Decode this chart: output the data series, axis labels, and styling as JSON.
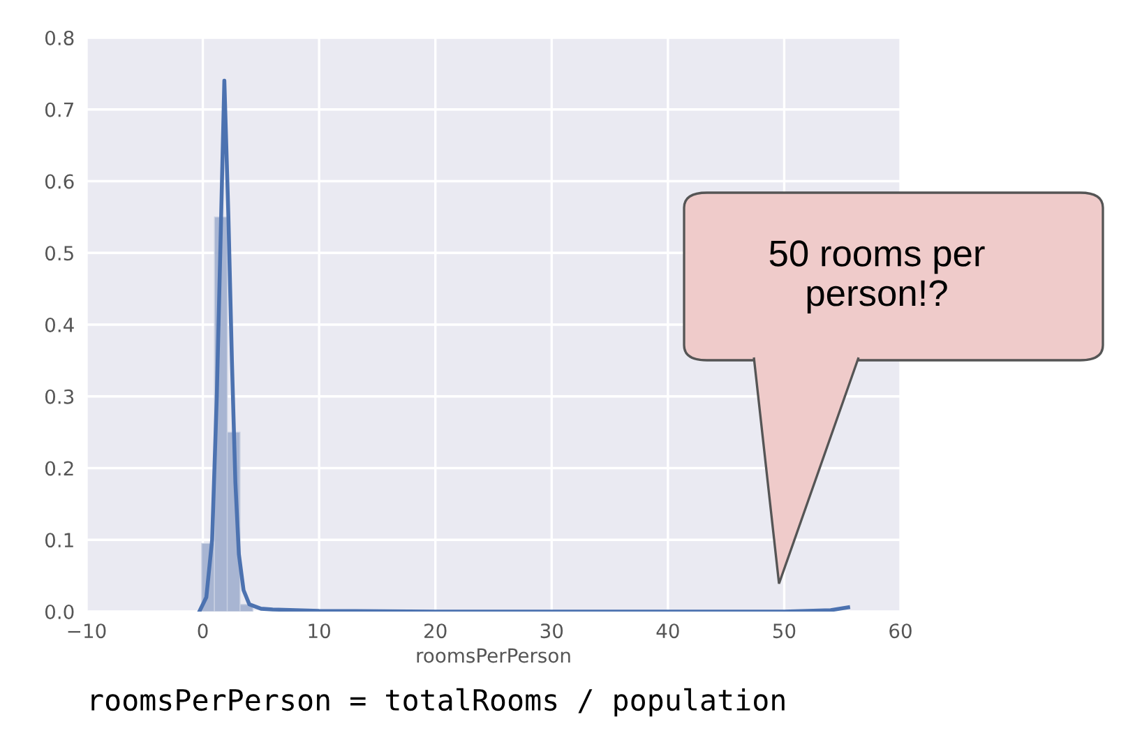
{
  "chart_data": {
    "type": "histogram",
    "bins": [
      -0.1,
      1.0,
      2.1,
      3.2,
      4.3
    ],
    "values": [
      0.095,
      0.55,
      0.25,
      0.01
    ],
    "color": "#a8b5d2",
    "series": [
      {
        "type": "line",
        "color": "#4c72b0",
        "x": [
          -0.3,
          0.3,
          0.8,
          1.2,
          1.5,
          1.85,
          2.2,
          2.5,
          2.8,
          3.1,
          3.5,
          4.0,
          5.0,
          6.0,
          8.0,
          10,
          20,
          30,
          40,
          50,
          54,
          55.5
        ],
        "values": [
          0,
          0.02,
          0.1,
          0.3,
          0.5,
          0.74,
          0.55,
          0.35,
          0.18,
          0.08,
          0.03,
          0.01,
          0.004,
          0.003,
          0.002,
          0.001,
          0,
          0,
          0,
          0,
          0.002,
          0.006
        ]
      }
    ],
    "xlabel": "roomsPerPerson",
    "xlim": [
      -10,
      60
    ],
    "xticks": [
      {
        "value": -10,
        "label": "−10"
      },
      0,
      10,
      20,
      30,
      40,
      50,
      60
    ],
    "ylim": [
      0.0,
      0.8
    ],
    "yticks": [
      {
        "value": 0.0,
        "label": "0.0"
      },
      0.1,
      0.2,
      0.3,
      0.4,
      0.5,
      0.6,
      0.7,
      0.8
    ],
    "grid": true,
    "annotations": [
      "50 rooms per\nperson!?",
      "roomsPerPerson = totalRooms / population"
    ]
  }
}
